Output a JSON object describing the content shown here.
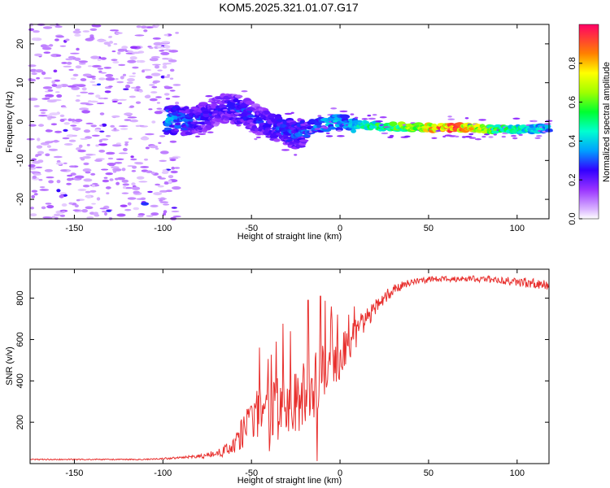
{
  "title": "KOM5.2025.321.01.07.G17",
  "chart_data": [
    {
      "type": "heatmap",
      "xlabel": "Height of straight line (km)",
      "ylabel": "Frequency (Hz)",
      "xlim": [
        -175,
        118
      ],
      "ylim": [
        -25,
        25
      ],
      "xticks": [
        -150,
        -100,
        -50,
        0,
        50,
        100
      ],
      "yticks": [
        -20,
        -10,
        0,
        10,
        20
      ],
      "colorbar": {
        "label": "Normalized spectral amplitude",
        "range": [
          0,
          1
        ],
        "ticks": [
          "0.0",
          "0.2",
          "0.4",
          "0.6",
          "0.8"
        ]
      },
      "ridge": [
        {
          "x": -95,
          "f": 0.5,
          "a": 0.35
        },
        {
          "x": -85,
          "f": 0.0,
          "a": 0.3
        },
        {
          "x": -75,
          "f": 1.5,
          "a": 0.25
        },
        {
          "x": -65,
          "f": 3.5,
          "a": 0.25
        },
        {
          "x": -55,
          "f": 3.0,
          "a": 0.3
        },
        {
          "x": -45,
          "f": 0.0,
          "a": 0.25
        },
        {
          "x": -35,
          "f": -2.0,
          "a": 0.3
        },
        {
          "x": -25,
          "f": -3.5,
          "a": 0.3
        },
        {
          "x": -15,
          "f": -1.5,
          "a": 0.3
        },
        {
          "x": -5,
          "f": 0.0,
          "a": 0.4
        },
        {
          "x": 5,
          "f": -0.5,
          "a": 0.35
        },
        {
          "x": 15,
          "f": -1.0,
          "a": 0.5
        },
        {
          "x": 25,
          "f": -1.2,
          "a": 0.55
        },
        {
          "x": 35,
          "f": -1.3,
          "a": 0.6
        },
        {
          "x": 45,
          "f": -1.4,
          "a": 0.7
        },
        {
          "x": 55,
          "f": -1.5,
          "a": 0.85
        },
        {
          "x": 65,
          "f": -1.6,
          "a": 0.9
        },
        {
          "x": 75,
          "f": -1.6,
          "a": 0.75
        },
        {
          "x": 85,
          "f": -1.9,
          "a": 0.6
        },
        {
          "x": 95,
          "f": -2.0,
          "a": 0.5
        },
        {
          "x": 105,
          "f": -2.0,
          "a": 0.45
        },
        {
          "x": 115,
          "f": -1.8,
          "a": 0.4
        }
      ],
      "noise_region": {
        "x_range": [
          -175,
          -100
        ],
        "amplitude": 0.12
      }
    },
    {
      "type": "line",
      "xlabel": "Height of straight line (km)",
      "ylabel": "SNR (v/v)",
      "xlim": [
        -175,
        118
      ],
      "ylim": [
        0,
        940
      ],
      "xticks": [
        -150,
        -100,
        -50,
        0,
        50,
        100
      ],
      "yticks": [
        200,
        400,
        600,
        800
      ],
      "color": "#e8302e",
      "envelope": [
        {
          "x": -175,
          "mean": 20,
          "spread": 3
        },
        {
          "x": -110,
          "mean": 20,
          "spread": 3
        },
        {
          "x": -100,
          "mean": 24,
          "spread": 4
        },
        {
          "x": -90,
          "mean": 28,
          "spread": 6
        },
        {
          "x": -80,
          "mean": 34,
          "spread": 10
        },
        {
          "x": -70,
          "mean": 45,
          "spread": 20
        },
        {
          "x": -60,
          "mean": 80,
          "spread": 40
        },
        {
          "x": -55,
          "mean": 150,
          "spread": 80
        },
        {
          "x": -50,
          "mean": 220,
          "spread": 120
        },
        {
          "x": -40,
          "mean": 250,
          "spread": 150
        },
        {
          "x": -30,
          "mean": 280,
          "spread": 170
        },
        {
          "x": -20,
          "mean": 330,
          "spread": 170
        },
        {
          "x": -15,
          "mean": 380,
          "spread": 170
        },
        {
          "x": -10,
          "mean": 440,
          "spread": 140
        },
        {
          "x": 0,
          "mean": 500,
          "spread": 120
        },
        {
          "x": 10,
          "mean": 640,
          "spread": 70
        },
        {
          "x": 20,
          "mean": 760,
          "spread": 40
        },
        {
          "x": 30,
          "mean": 840,
          "spread": 25
        },
        {
          "x": 40,
          "mean": 880,
          "spread": 18
        },
        {
          "x": 50,
          "mean": 890,
          "spread": 15
        },
        {
          "x": 70,
          "mean": 895,
          "spread": 15
        },
        {
          "x": 90,
          "mean": 890,
          "spread": 18
        },
        {
          "x": 100,
          "mean": 880,
          "spread": 25
        },
        {
          "x": 118,
          "mean": 860,
          "spread": 25
        }
      ],
      "dips": [
        {
          "x": -13,
          "value": 12
        },
        {
          "x": -28,
          "value": 90
        },
        {
          "x": -40,
          "value": 60
        }
      ],
      "spikes": [
        {
          "x": -18,
          "value": 790
        },
        {
          "x": -11,
          "value": 810
        },
        {
          "x": -5,
          "value": 760
        },
        {
          "x": 5,
          "value": 720
        },
        {
          "x": -28,
          "value": 640
        },
        {
          "x": -36,
          "value": 590
        }
      ]
    }
  ]
}
